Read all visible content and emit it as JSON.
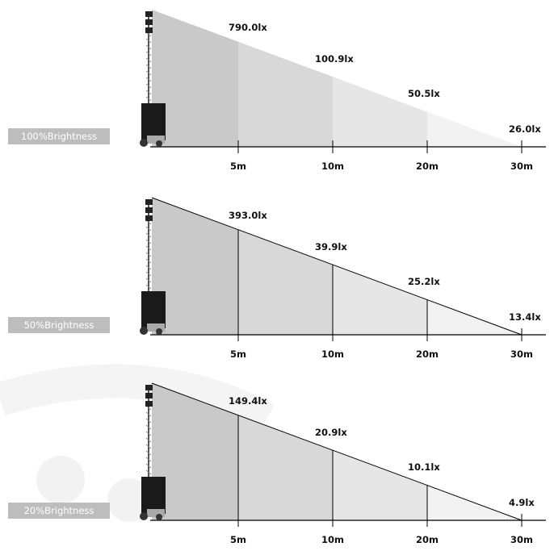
{
  "distances": [
    "5m",
    "10m",
    "20m",
    "30m"
  ],
  "panels": [
    {
      "name": "panel-100",
      "label": "100%Brightness",
      "style": "filled",
      "lux": [
        "790.0lx",
        "100.9lx",
        "50.5lx",
        "26.0lx"
      ]
    },
    {
      "name": "panel-50",
      "label": "50%Brightness",
      "style": "outlined",
      "lux": [
        "393.0lx",
        "39.9lx",
        "25.2lx",
        "13.4lx"
      ]
    },
    {
      "name": "panel-20",
      "label": "20%Brightness",
      "style": "outlined",
      "lux": [
        "149.4lx",
        "20.9lx",
        "10.1lx",
        "4.9lx"
      ]
    }
  ],
  "colors": {
    "shade_zone1": "#c9c9c9",
    "shade_zone2": "#d8d8d8",
    "shade_zone3": "#e6e6e6",
    "shade_zone4": "#f2f2f2",
    "label_bg": "#bdbdbd",
    "axis": "#000000"
  }
}
